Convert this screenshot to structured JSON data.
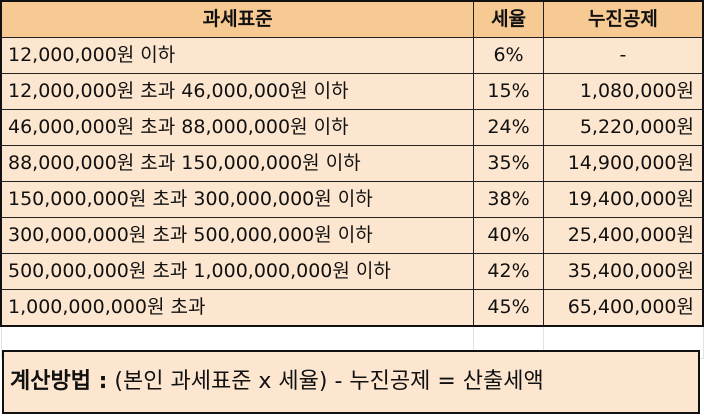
{
  "table": {
    "headers": [
      "과세표준",
      "세율",
      "누진공제"
    ],
    "rows": [
      {
        "bracket": "12,000,000원 이하",
        "rate": "6%",
        "deduction": "-"
      },
      {
        "bracket": "12,000,000원 초과 46,000,000원 이하",
        "rate": "15%",
        "deduction": "1,080,000원"
      },
      {
        "bracket": "46,000,000원 초과 88,000,000원 이하",
        "rate": "24%",
        "deduction": "5,220,000원"
      },
      {
        "bracket": "88,000,000원 초과 150,000,000원 이하",
        "rate": "35%",
        "deduction": "14,900,000원"
      },
      {
        "bracket": "150,000,000원 초과 300,000,000원 이하",
        "rate": "38%",
        "deduction": "19,400,000원"
      },
      {
        "bracket": "300,000,000원 초과 500,000,000원 이하",
        "rate": "40%",
        "deduction": "25,400,000원"
      },
      {
        "bracket": "500,000,000원 초과 1,000,000,000원 이하",
        "rate": "42%",
        "deduction": "35,400,000원"
      },
      {
        "bracket": "1,000,000,000원 초과",
        "rate": "45%",
        "deduction": "65,400,000원"
      }
    ]
  },
  "method": {
    "label": "계산방법 :",
    "formula": " (본인 과세표준 x 세율) - 누진공제 = 산출세액"
  },
  "colors": {
    "header_bg": "#f7ca94",
    "row_bg": "#fde6cf",
    "border": "#222222"
  }
}
